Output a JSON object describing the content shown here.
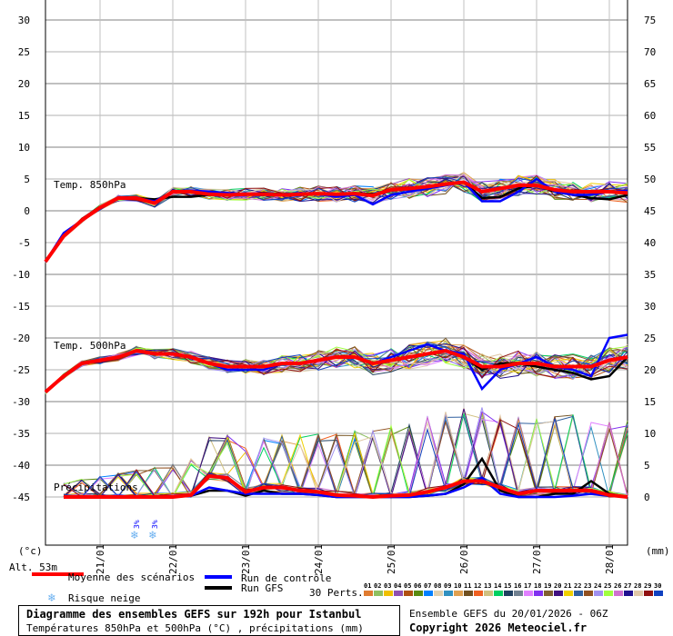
{
  "chart_data": {
    "type": "line",
    "title": "Diagramme des ensembles GEFS sur 192h pour Istanbul",
    "subtitle": "Températures 850hPa et 500hPa (°C) , précipitations (mm)",
    "left_axis": {
      "label": "(°c)",
      "ticks": [
        30,
        25,
        20,
        15,
        10,
        5,
        0,
        -5,
        -10,
        -15,
        -20,
        -25,
        -30,
        -35,
        -40,
        -45
      ],
      "range": [
        -45,
        30
      ]
    },
    "right_axis": {
      "label": "(mm)",
      "ticks": [
        75,
        70,
        65,
        60,
        55,
        50,
        45,
        40,
        35,
        30,
        25,
        20,
        15,
        10,
        5,
        0
      ],
      "range": [
        0,
        75
      ]
    },
    "x_ticks": [
      "21/01",
      "22/01",
      "23/01",
      "24/01",
      "25/01",
      "26/01",
      "27/01",
      "28/01"
    ],
    "x_step_hours": 6,
    "x_range_hours": [
      0,
      192
    ],
    "grid": true,
    "altitude": "Alt. 53m",
    "panels": [
      {
        "label": "Temp. 850hPa",
        "mean": [
          -8,
          -4,
          -1.5,
          0.5,
          2,
          2,
          1.2,
          3,
          3,
          2.6,
          2.5,
          2.6,
          2.6,
          2.5,
          2.6,
          2.7,
          2.6,
          2.7,
          2.4,
          3.3,
          3.5,
          3.8,
          4.2,
          4.5,
          3,
          3.5,
          4,
          4,
          3.3,
          3,
          3,
          3,
          2.8
        ],
        "control": [
          -8,
          -3.5,
          -1.5,
          0.5,
          2,
          2,
          1.5,
          3,
          3.2,
          3,
          2.8,
          2.6,
          2.5,
          2.6,
          2.8,
          2.6,
          2.2,
          2.5,
          1,
          2.5,
          3,
          3.5,
          4,
          4.5,
          1.5,
          1.5,
          3,
          5,
          3,
          2.5,
          2.5,
          3,
          3.2
        ],
        "gfs": [
          -8,
          -4,
          -1.5,
          0.5,
          2,
          2,
          1.8,
          2.2,
          2.2,
          2.5,
          2.5,
          2.5,
          2.8,
          2.6,
          2.5,
          2.6,
          2.5,
          2.8,
          2.6,
          3.2,
          3.5,
          3.8,
          4.2,
          4.5,
          2,
          2.2,
          3.5,
          4,
          3,
          2.5,
          2,
          1.8,
          2.5
        ],
        "spread": 1.6
      },
      {
        "label": "Temp. 500hPa",
        "mean": [
          -28.5,
          -26,
          -24,
          -23.5,
          -23,
          -22,
          -22.5,
          -22.5,
          -23,
          -24,
          -24.5,
          -24.5,
          -24.5,
          -24,
          -24,
          -23.5,
          -23,
          -23,
          -24,
          -23.5,
          -23,
          -22.5,
          -22,
          -23,
          -24.5,
          -24.5,
          -24,
          -24,
          -24.5,
          -24.5,
          -24.5,
          -23.5,
          -23
        ],
        "control": [
          -28.5,
          -26,
          -24,
          -23.5,
          -23,
          -22,
          -22.5,
          -22.5,
          -23,
          -24,
          -25,
          -25,
          -25,
          -24,
          -24,
          -23.5,
          -23,
          -23,
          -24,
          -23,
          -22,
          -21,
          -22,
          -22.5,
          -28,
          -25,
          -24,
          -23,
          -24.5,
          -25,
          -26,
          -20,
          -19.5
        ],
        "gfs": [
          -28.5,
          -26,
          -24,
          -23.5,
          -23,
          -22,
          -22.5,
          -22.5,
          -23,
          -24,
          -24.5,
          -24.5,
          -24.5,
          -24,
          -24,
          -23.5,
          -23,
          -23,
          -24,
          -23.5,
          -23,
          -22.5,
          -22,
          -23,
          -25,
          -24,
          -24,
          -24.5,
          -25,
          -25.5,
          -26.5,
          -26,
          -23
        ],
        "spread": 2
      },
      {
        "label": "Précipitations",
        "mean": [
          0,
          0,
          0,
          0,
          0,
          0,
          0,
          0,
          0.3,
          3.3,
          3,
          0.8,
          1.5,
          1.5,
          1,
          0.8,
          0.3,
          0.2,
          0,
          0.2,
          0.3,
          0.8,
          1.5,
          2.5,
          2.5,
          1.5,
          0.5,
          1,
          1,
          1,
          1,
          0.3,
          0
        ],
        "control": [
          0,
          0,
          0,
          0,
          0,
          0,
          0,
          0,
          0.2,
          1.5,
          1,
          0.5,
          0.5,
          0.5,
          0.5,
          0.3,
          0,
          0,
          0,
          0,
          0,
          0.2,
          0.5,
          1.5,
          3,
          0.5,
          0,
          0,
          0,
          0.2,
          0.5,
          0.2,
          0
        ],
        "gfs": [
          0,
          0,
          0,
          0,
          0,
          0,
          0,
          0,
          0.2,
          1,
          1,
          0.2,
          1,
          0.5,
          0.5,
          0.3,
          0,
          0,
          0,
          0,
          0,
          0.2,
          0.5,
          2,
          6,
          1,
          0,
          0,
          0.5,
          0.5,
          2.5,
          0.5,
          0
        ],
        "spread": 4
      }
    ],
    "snow_risk": [
      {
        "step": 5,
        "label": "3%"
      },
      {
        "step": 6,
        "label": "3%"
      }
    ]
  },
  "legend": {
    "mean": "Moyenne des scénarios",
    "control": "Run de contrôle",
    "gfs": "Run GFS",
    "snow": "Risque neige",
    "perts": "30 Perts.",
    "mean_color": "#ff0000",
    "control_color": "#0000ff",
    "gfs_color": "#000000",
    "members": [
      {
        "n": "01",
        "c": "#e07b30"
      },
      {
        "n": "02",
        "c": "#8fc060"
      },
      {
        "n": "03",
        "c": "#f0c000"
      },
      {
        "n": "04",
        "c": "#9050b0"
      },
      {
        "n": "05",
        "c": "#b05010"
      },
      {
        "n": "06",
        "c": "#5a8a10"
      },
      {
        "n": "07",
        "c": "#0080ff"
      },
      {
        "n": "08",
        "c": "#e0d0b0"
      },
      {
        "n": "09",
        "c": "#3090c0"
      },
      {
        "n": "10",
        "c": "#e0a050"
      },
      {
        "n": "11",
        "c": "#705020"
      },
      {
        "n": "12",
        "c": "#f06020"
      },
      {
        "n": "13",
        "c": "#d0c080"
      },
      {
        "n": "14",
        "c": "#00d060"
      },
      {
        "n": "15",
        "c": "#204060"
      },
      {
        "n": "16",
        "c": "#708090"
      },
      {
        "n": "17",
        "c": "#e080ff"
      },
      {
        "n": "18",
        "c": "#8030f0"
      },
      {
        "n": "19",
        "c": "#806030"
      },
      {
        "n": "20",
        "c": "#401080"
      },
      {
        "n": "21",
        "c": "#f0d000"
      },
      {
        "n": "22",
        "c": "#3060a0"
      },
      {
        "n": "23",
        "c": "#905020"
      },
      {
        "n": "24",
        "c": "#a090f0"
      },
      {
        "n": "25",
        "c": "#a0ff40"
      },
      {
        "n": "26",
        "c": "#d070d0"
      },
      {
        "n": "27",
        "c": "#201090"
      },
      {
        "n": "28",
        "c": "#e0c8a8"
      },
      {
        "n": "29",
        "c": "#901010"
      },
      {
        "n": "30",
        "c": "#1040c0"
      }
    ]
  },
  "footer": {
    "run": "Ensemble GEFS du 20/01/2026 - 06Z",
    "copyright": "Copyright 2026 Meteociel.fr"
  }
}
